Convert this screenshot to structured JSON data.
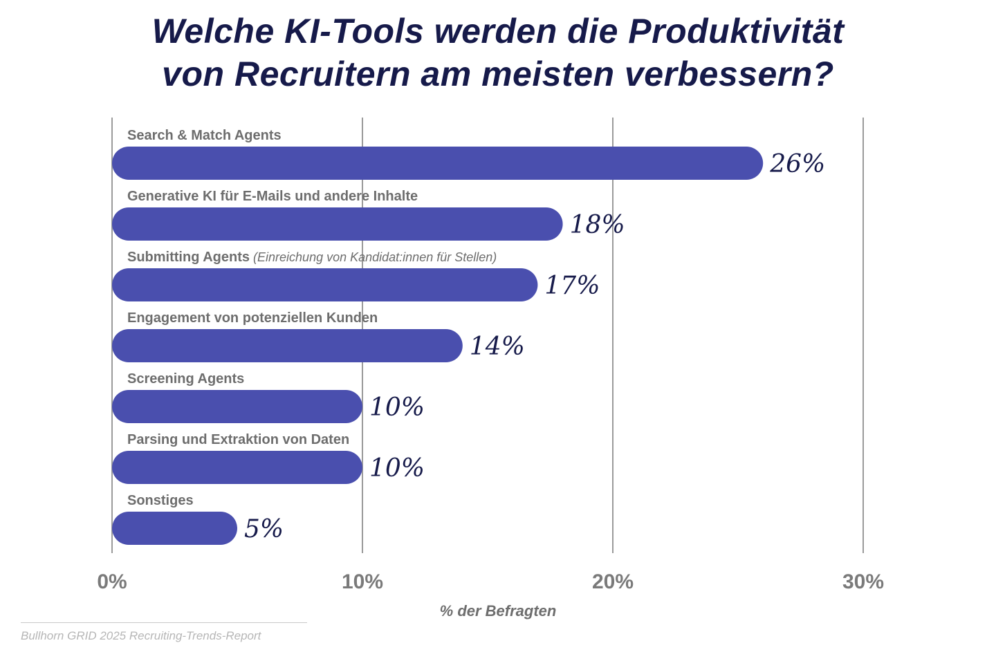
{
  "chart_data": {
    "type": "bar",
    "orientation": "horizontal",
    "title_lines": [
      "Welche KI-Tools werden die Produktivität",
      "von Recruitern am meisten verbessern?"
    ],
    "categories": [
      "Search & Match Agents",
      "Generative KI für E-Mails und andere Inhalte",
      "Submitting Agents",
      "Engagement von potenziellen Kunden",
      "Screening Agents",
      "Parsing und Extraktion von Daten",
      "Sonstiges"
    ],
    "category_notes": [
      "",
      "",
      "(Einreichung von Kandidat:innen für Stellen)",
      "",
      "",
      "",
      ""
    ],
    "values": [
      26,
      18,
      17,
      14,
      10,
      10,
      5
    ],
    "value_labels": [
      "26%",
      "18%",
      "17%",
      "14%",
      "10%",
      "10%",
      "5%"
    ],
    "xlim": [
      0,
      30
    ],
    "xticks": [
      0,
      10,
      20,
      30
    ],
    "xtick_labels": [
      "0%",
      "10%",
      "20%",
      "30%"
    ],
    "xlabel": "% der Befragten",
    "grid": true,
    "colors": {
      "bar": "#4a4fae",
      "title": "#161a4a",
      "value": "#161a4a",
      "label": "#6d6d6d",
      "grid": "#9a9a9a"
    }
  },
  "source": "Bullhorn GRID 2025 Recruiting-Trends-Report"
}
